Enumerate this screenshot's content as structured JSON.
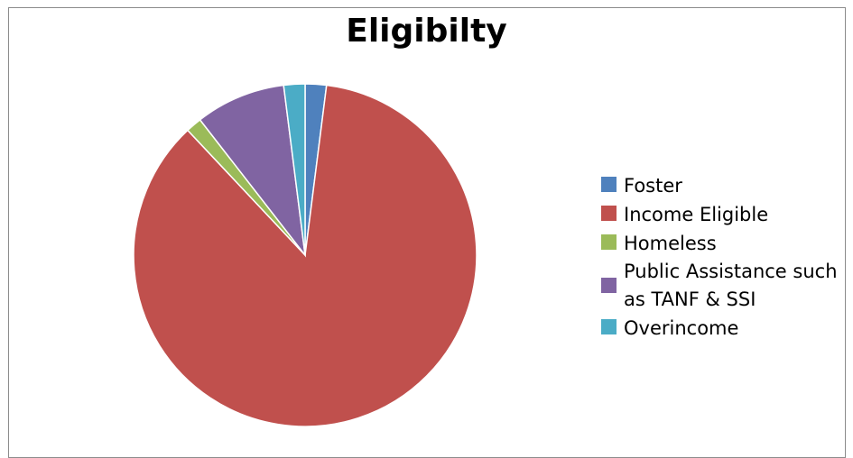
{
  "chart_data": {
    "type": "pie",
    "title": "Eligibilty",
    "categories": [
      "Foster",
      "Income Eligible",
      "Homeless",
      "Public Assistance such as TANF & SSI",
      "Overincome"
    ],
    "values": [
      2,
      86,
      1.5,
      8.5,
      2
    ],
    "colors": [
      "#4f81bd",
      "#c0504d",
      "#9bbb59",
      "#8064a2",
      "#4bacc6"
    ],
    "legend_position": "right"
  }
}
